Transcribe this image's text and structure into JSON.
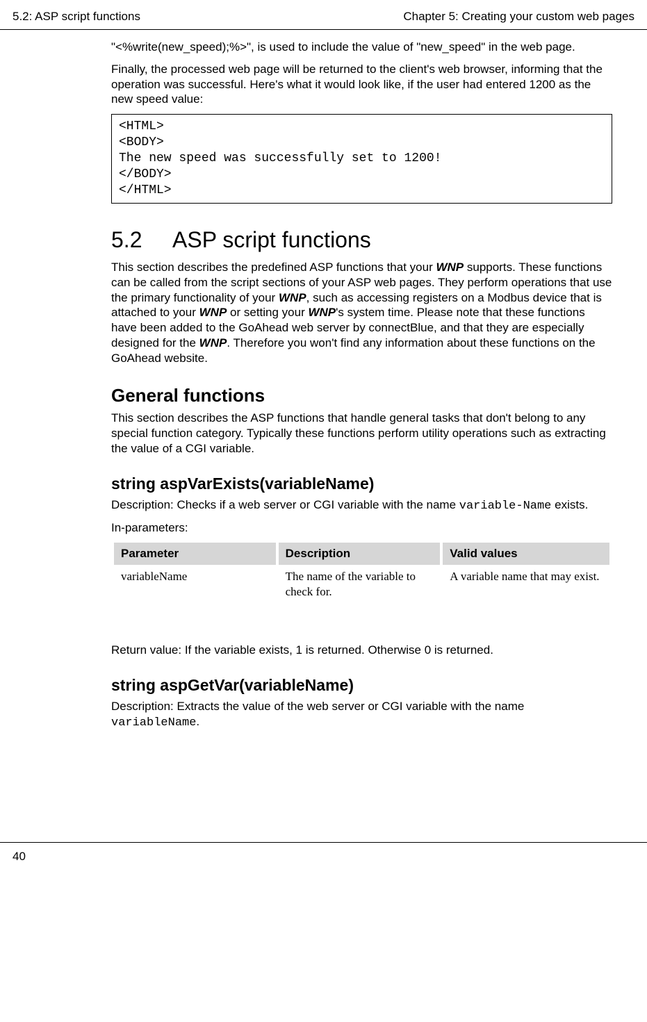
{
  "header": {
    "left": "5.2: ASP script functions",
    "right": "Chapter 5: Creating your custom web pages"
  },
  "intro": {
    "p1_pre": "\"<%write(new_speed);%>\", is used to include the value of \"new_speed\" in the web page.",
    "p2": "Finally, the processed web page will be returned to the client's web browser, informing that the operation was successful. Here's what it would look like, if the user had entered 1200 as the new speed value:"
  },
  "codebox": "<HTML>\n<BODY>\nThe new speed was successfully set to 1200!\n</BODY>\n</HTML>",
  "section": {
    "number": "5.2",
    "title": "ASP script functions",
    "body_seg1": "This section describes the predefined ASP functions that your ",
    "wnp": "WNP",
    "body_seg2": " supports. These functions can be called from the script sections of your ASP web pages. They perform operations that use the primary functionality of your ",
    "body_seg3": ", such as accessing registers on a Modbus device that is attached to your ",
    "body_seg4": " or setting your ",
    "body_seg5": "'s system time. Please note that these functions have been added to the GoAhead web server by connectBlue, and that they are especially designed for the ",
    "body_seg6": ". Therefore you won't find any information about these functions on the GoAhead website."
  },
  "general": {
    "title": "General functions",
    "body": "This section describes the ASP functions that handle general tasks that don't belong to any special function category. Typically these functions perform utility operations such as extracting the value of a CGI variable."
  },
  "func1": {
    "title": "string aspVarExists(variableName)",
    "desc_pre": "Description: Checks if a web server or CGI variable with the name ",
    "desc_code": "variable-Name",
    "desc_post": " exists.",
    "inparams": "In-parameters:",
    "table": {
      "h1": "Parameter",
      "h2": "Description",
      "h3": "Valid values",
      "r1c1": "variableName",
      "r1c2": "The name of the variable to check for.",
      "r1c3": "A variable name that may exist."
    },
    "retval": "Return value: If the variable exists, 1 is returned. Otherwise 0 is returned."
  },
  "func2": {
    "title": "string aspGetVar(variableName)",
    "desc_pre": "Description: Extracts the value of the web server or CGI variable with the name ",
    "desc_code": "variableName",
    "desc_post": "."
  },
  "footer": {
    "page": "40"
  }
}
